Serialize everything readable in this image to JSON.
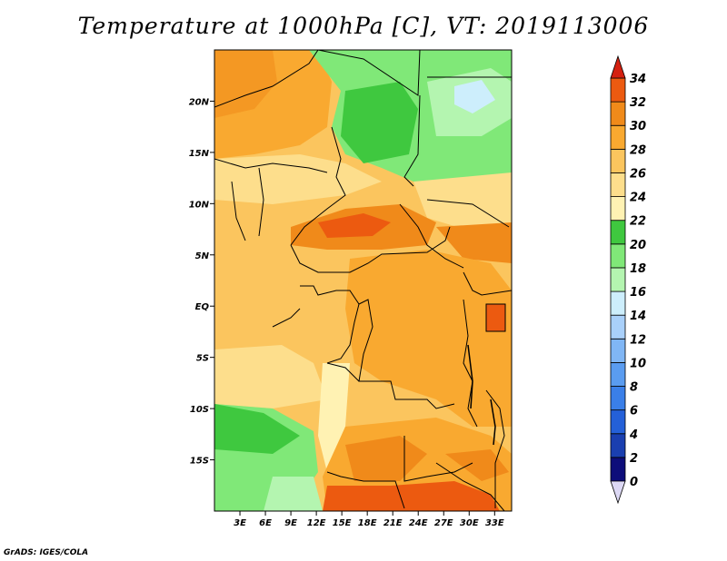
{
  "title": "Temperature at 1000hPa [C], VT: 2019113006",
  "credit": "GrADS: IGES/COLA",
  "lat_ticks": [
    "20N",
    "15N",
    "10N",
    "5N",
    "EQ",
    "5S",
    "10S",
    "15S"
  ],
  "lat_values": [
    20,
    15,
    10,
    5,
    0,
    -5,
    -10,
    -15
  ],
  "lon_ticks": [
    "3E",
    "6E",
    "9E",
    "12E",
    "15E",
    "18E",
    "21E",
    "24E",
    "27E",
    "30E",
    "33E"
  ],
  "lon_values": [
    3,
    6,
    9,
    12,
    15,
    18,
    21,
    24,
    27,
    30,
    33
  ],
  "extent": {
    "lon_min": 0,
    "lon_max": 35,
    "lat_min": -20,
    "lat_max": 25
  },
  "colorbar": {
    "levels": [
      "0",
      "2",
      "4",
      "6",
      "8",
      "10",
      "12",
      "14",
      "16",
      "18",
      "20",
      "22",
      "24",
      "26",
      "28",
      "30",
      "32",
      "34"
    ],
    "colors": [
      "#0d0d7a",
      "#1a3fb0",
      "#2460d8",
      "#3a7fe8",
      "#5a9cf0",
      "#80b6f5",
      "#a9d0fa",
      "#cdeefc",
      "#b4f5b0",
      "#80e878",
      "#3fc83f",
      "#fff2b3",
      "#fdde8c",
      "#fbc55e",
      "#f9a930",
      "#f08a1a",
      "#ec5a10",
      "#d42010"
    ]
  },
  "colors": {
    "land_warm": "#fbc55e",
    "land_hot": "#f08a1a",
    "cool": "#80e878",
    "border": "#000000"
  }
}
